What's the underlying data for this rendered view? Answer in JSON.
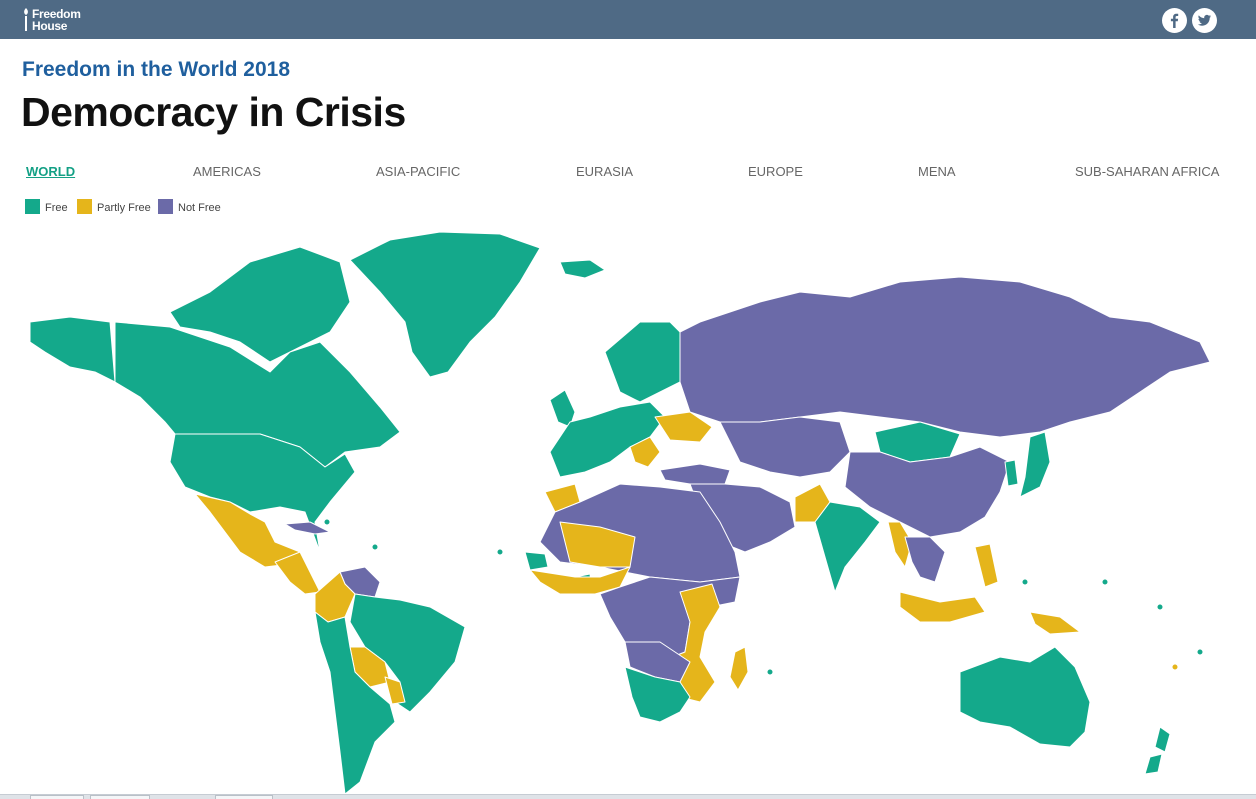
{
  "header": {
    "logo_line1": "Freedom",
    "logo_line2": "House",
    "social": [
      "facebook-icon",
      "twitter-icon"
    ]
  },
  "kicker": "Freedom in the World 2018",
  "title": "Democracy in Crisis",
  "tabs": [
    {
      "label": "WORLD",
      "active": true
    },
    {
      "label": "AMERICAS",
      "active": false
    },
    {
      "label": "ASIA-PACIFIC",
      "active": false
    },
    {
      "label": "EURASIA",
      "active": false
    },
    {
      "label": "EUROPE",
      "active": false
    },
    {
      "label": "MENA",
      "active": false
    },
    {
      "label": "SUB-SAHARAN AFRICA",
      "active": false
    }
  ],
  "legend": [
    {
      "label": "Free",
      "color": "#14a98b"
    },
    {
      "label": "Partly Free",
      "color": "#e5b51b"
    },
    {
      "label": "Not Free",
      "color": "#6b6aa8"
    }
  ],
  "colors": {
    "topbar": "#4f6a85",
    "kicker": "#1f5f9e",
    "active_tab": "#13a085"
  },
  "map": {
    "regions": [
      {
        "name": "greenland",
        "status": "free"
      },
      {
        "name": "canada",
        "status": "free"
      },
      {
        "name": "alaska",
        "status": "free"
      },
      {
        "name": "arctic-islands",
        "status": "free"
      },
      {
        "name": "united-states",
        "status": "free"
      },
      {
        "name": "mexico",
        "status": "partly"
      },
      {
        "name": "central-america",
        "status": "partly"
      },
      {
        "name": "cuba",
        "status": "notfree"
      },
      {
        "name": "venezuela",
        "status": "notfree"
      },
      {
        "name": "colombia",
        "status": "partly"
      },
      {
        "name": "brazil",
        "status": "free"
      },
      {
        "name": "bolivia",
        "status": "partly"
      },
      {
        "name": "paraguay",
        "status": "partly"
      },
      {
        "name": "southern-cone",
        "status": "free"
      },
      {
        "name": "iceland",
        "status": "free"
      },
      {
        "name": "scandinavia",
        "status": "free"
      },
      {
        "name": "western-europe",
        "status": "free"
      },
      {
        "name": "uk-ireland",
        "status": "free"
      },
      {
        "name": "ukraine",
        "status": "partly"
      },
      {
        "name": "balkans",
        "status": "partly"
      },
      {
        "name": "turkey",
        "status": "notfree"
      },
      {
        "name": "russia",
        "status": "notfree"
      },
      {
        "name": "mongolia",
        "status": "free"
      },
      {
        "name": "china",
        "status": "notfree"
      },
      {
        "name": "central-asia",
        "status": "notfree"
      },
      {
        "name": "japan",
        "status": "free"
      },
      {
        "name": "korea",
        "status": "free"
      },
      {
        "name": "middle-east",
        "status": "notfree"
      },
      {
        "name": "pakistan",
        "status": "partly"
      },
      {
        "name": "india",
        "status": "free"
      },
      {
        "name": "myanmar",
        "status": "partly"
      },
      {
        "name": "southeast-asia",
        "status": "notfree"
      },
      {
        "name": "philippines",
        "status": "partly"
      },
      {
        "name": "indonesia",
        "status": "partly"
      },
      {
        "name": "morocco",
        "status": "partly"
      },
      {
        "name": "north-africa",
        "status": "notfree"
      },
      {
        "name": "sahel",
        "status": "partly"
      },
      {
        "name": "west-africa-coast",
        "status": "partly"
      },
      {
        "name": "ghana-senegal",
        "status": "free"
      },
      {
        "name": "central-africa",
        "status": "notfree"
      },
      {
        "name": "east-africa",
        "status": "partly"
      },
      {
        "name": "southern-africa",
        "status": "free"
      },
      {
        "name": "zimbabwe-angola",
        "status": "notfree"
      },
      {
        "name": "madagascar",
        "status": "partly"
      },
      {
        "name": "australia",
        "status": "free"
      },
      {
        "name": "new-zealand",
        "status": "free"
      },
      {
        "name": "papua",
        "status": "partly"
      }
    ]
  }
}
